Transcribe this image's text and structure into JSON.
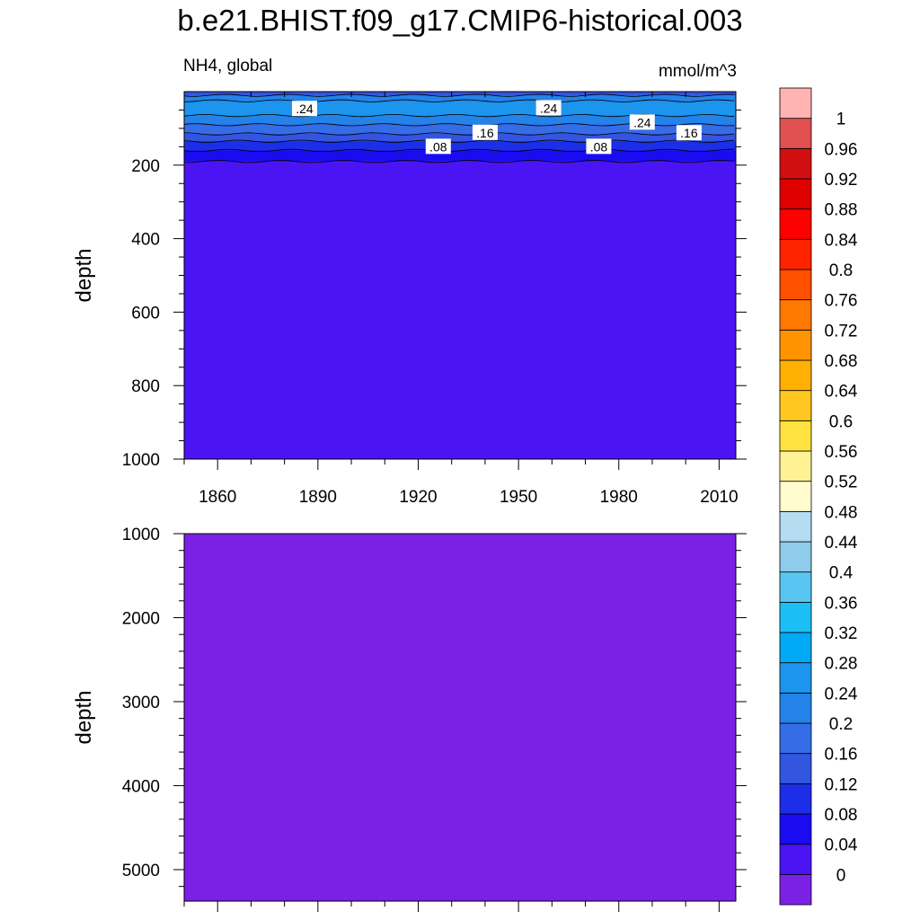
{
  "title": "b.e21.BHIST.f09_g17.CMIP6-historical.003",
  "subtitle_left": "NH4, global",
  "subtitle_right": "mmol/m^3",
  "colors": {
    "levels": [
      "#7b21e6",
      "#4a14f5",
      "#1a0cf0",
      "#1c2ee8",
      "#3355e0",
      "#356de6",
      "#2383e8",
      "#1b95ee",
      "#00aaf5",
      "#1cbff5",
      "#58c6f0",
      "#8fcbeb",
      "#b5ddf2",
      "#fffdd0",
      "#fff295",
      "#ffe23f",
      "#ffc71f",
      "#ffb000",
      "#ff9400",
      "#ff7800",
      "#ff5000",
      "#ff2400",
      "#ff0000",
      "#e00000",
      "#d01010",
      "#e05050",
      "#ffb3b3"
    ]
  },
  "chart_data": [
    {
      "type": "heatmap",
      "panel": "upper",
      "x_ticks": [
        1860,
        1890,
        1920,
        1950,
        1980,
        2010
      ],
      "xlim": [
        1850,
        2015
      ],
      "ylabel": "depth",
      "y_ticks": [
        200,
        400,
        600,
        800,
        1000
      ],
      "ylim": [
        0,
        1000
      ],
      "y_inverted": true,
      "depth_profile": [
        {
          "depth": 0,
          "value": 0.13
        },
        {
          "depth": 10,
          "value": 0.19
        },
        {
          "depth": 25,
          "value": 0.24
        },
        {
          "depth": 65,
          "value": 0.26
        },
        {
          "depth": 90,
          "value": 0.2
        },
        {
          "depth": 115,
          "value": 0.15
        },
        {
          "depth": 135,
          "value": 0.11
        },
        {
          "depth": 160,
          "value": 0.07
        },
        {
          "depth": 190,
          "value": 0.03
        },
        {
          "depth": 1000,
          "value": 0.0
        }
      ],
      "contour_labels": [
        {
          "text": ".24",
          "year": 1886,
          "depth": 47
        },
        {
          "text": ".24",
          "year": 1959,
          "depth": 45
        },
        {
          "text": ".24",
          "year": 1987,
          "depth": 84
        },
        {
          "text": ".16",
          "year": 1940,
          "depth": 112
        },
        {
          "text": ".16",
          "year": 2001,
          "depth": 113
        },
        {
          "text": ".08",
          "year": 1926,
          "depth": 150
        },
        {
          "text": ".08",
          "year": 1974,
          "depth": 150
        }
      ]
    },
    {
      "type": "heatmap",
      "panel": "lower",
      "ylabel": "depth",
      "y_ticks": [
        1000,
        2000,
        3000,
        4000,
        5000
      ],
      "ylim": [
        1000,
        5375
      ],
      "y_inverted": true,
      "value": 0.0
    }
  ],
  "colorbar": {
    "labels": [
      "1",
      "0.96",
      "0.92",
      "0.88",
      "0.84",
      "0.8",
      "0.76",
      "0.72",
      "0.68",
      "0.64",
      "0.6",
      "0.56",
      "0.52",
      "0.48",
      "0.44",
      "0.4",
      "0.36",
      "0.32",
      "0.28",
      "0.24",
      "0.2",
      "0.16",
      "0.12",
      "0.08",
      "0.04",
      "0"
    ],
    "levels_low_to_high": [
      0,
      0.04,
      0.08,
      0.12,
      0.16,
      0.2,
      0.24,
      0.28,
      0.32,
      0.36,
      0.4,
      0.44,
      0.48,
      0.52,
      0.56,
      0.6,
      0.64,
      0.68,
      0.72,
      0.76,
      0.8,
      0.84,
      0.88,
      0.92,
      0.96,
      1
    ]
  }
}
